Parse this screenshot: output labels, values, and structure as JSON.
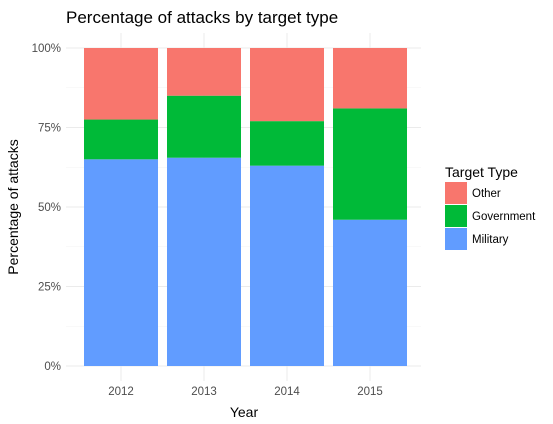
{
  "chart_data": {
    "type": "bar",
    "stacked": true,
    "title": "Percentage of attacks by target type",
    "xlabel": "Year",
    "ylabel": "Percentage of attacks",
    "categories": [
      "2012",
      "2013",
      "2014",
      "2015"
    ],
    "ylim": [
      0,
      1
    ],
    "yticks": [
      0,
      0.25,
      0.5,
      0.75,
      1
    ],
    "ytick_labels": [
      "0%",
      "25%",
      "50%",
      "75%",
      "100%"
    ],
    "grid": true,
    "legend": {
      "title": "Target Type",
      "placement": "right",
      "entries": [
        "Other",
        "Government",
        "Military"
      ]
    },
    "series": [
      {
        "name": "Military",
        "color": "#619CFF",
        "values": [
          0.65,
          0.655,
          0.63,
          0.46
        ]
      },
      {
        "name": "Government",
        "color": "#00BA38",
        "values": [
          0.125,
          0.195,
          0.14,
          0.35
        ]
      },
      {
        "name": "Other",
        "color": "#F8766D",
        "values": [
          0.225,
          0.15,
          0.23,
          0.19
        ]
      }
    ]
  }
}
